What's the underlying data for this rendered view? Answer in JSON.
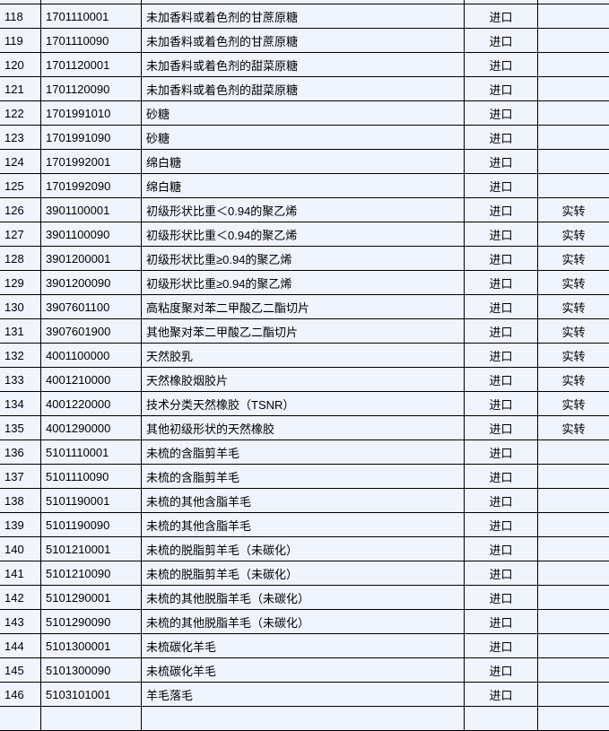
{
  "rows": [
    {
      "no": "",
      "code": "",
      "name": "",
      "type": "",
      "note": ""
    },
    {
      "no": "118",
      "code": "1701110001",
      "name": "未加香料或着色剂的甘蔗原糖",
      "type": "进口",
      "note": ""
    },
    {
      "no": "119",
      "code": "1701110090",
      "name": "未加香料或着色剂的甘蔗原糖",
      "type": "进口",
      "note": ""
    },
    {
      "no": "120",
      "code": "1701120001",
      "name": "未加香料或着色剂的甜菜原糖",
      "type": "进口",
      "note": ""
    },
    {
      "no": "121",
      "code": "1701120090",
      "name": "未加香料或着色剂的甜菜原糖",
      "type": "进口",
      "note": ""
    },
    {
      "no": "122",
      "code": "1701991010",
      "name": "砂糖",
      "type": "进口",
      "note": ""
    },
    {
      "no": "123",
      "code": "1701991090",
      "name": "砂糖",
      "type": "进口",
      "note": ""
    },
    {
      "no": "124",
      "code": "1701992001",
      "name": "绵白糖",
      "type": "进口",
      "note": ""
    },
    {
      "no": "125",
      "code": "1701992090",
      "name": "绵白糖",
      "type": "进口",
      "note": ""
    },
    {
      "no": "126",
      "code": "3901100001",
      "name": "初级形状比重＜0.94的聚乙烯",
      "type": "进口",
      "note": "实转"
    },
    {
      "no": "127",
      "code": "3901100090",
      "name": "初级形状比重＜0.94的聚乙烯",
      "type": "进口",
      "note": "实转"
    },
    {
      "no": "128",
      "code": "3901200001",
      "name": "初级形状比重≥0.94的聚乙烯",
      "type": "进口",
      "note": "实转"
    },
    {
      "no": "129",
      "code": "3901200090",
      "name": "初级形状比重≥0.94的聚乙烯",
      "type": "进口",
      "note": "实转"
    },
    {
      "no": "130",
      "code": "3907601100",
      "name": "高粘度聚对苯二甲酸乙二酯切片",
      "type": "进口",
      "note": "实转"
    },
    {
      "no": "131",
      "code": "3907601900",
      "name": "其他聚对苯二甲酸乙二酯切片",
      "type": "进口",
      "note": "实转"
    },
    {
      "no": "132",
      "code": "4001100000",
      "name": "天然胶乳",
      "type": "进口",
      "note": "实转"
    },
    {
      "no": "133",
      "code": "4001210000",
      "name": "天然橡胶烟胶片",
      "type": "进口",
      "note": "实转"
    },
    {
      "no": "134",
      "code": "4001220000",
      "name": "技术分类天然橡胶（TSNR）",
      "type": "进口",
      "note": "实转"
    },
    {
      "no": "135",
      "code": "4001290000",
      "name": "其他初级形状的天然橡胶",
      "type": "进口",
      "note": "实转"
    },
    {
      "no": "136",
      "code": "5101110001",
      "name": "未梳的含脂剪羊毛",
      "type": "进口",
      "note": ""
    },
    {
      "no": "137",
      "code": "5101110090",
      "name": "未梳的含脂剪羊毛",
      "type": "进口",
      "note": ""
    },
    {
      "no": "138",
      "code": "5101190001",
      "name": "未梳的其他含脂羊毛",
      "type": "进口",
      "note": ""
    },
    {
      "no": "139",
      "code": "5101190090",
      "name": "未梳的其他含脂羊毛",
      "type": "进口",
      "note": ""
    },
    {
      "no": "140",
      "code": "5101210001",
      "name": "未梳的脱脂剪羊毛（未碳化）",
      "type": "进口",
      "note": ""
    },
    {
      "no": "141",
      "code": "5101210090",
      "name": "未梳的脱脂剪羊毛（未碳化）",
      "type": "进口",
      "note": ""
    },
    {
      "no": "142",
      "code": "5101290001",
      "name": "未梳的其他脱脂羊毛（未碳化）",
      "type": "进口",
      "note": ""
    },
    {
      "no": "143",
      "code": "5101290090",
      "name": "未梳的其他脱脂羊毛（未碳化）",
      "type": "进口",
      "note": ""
    },
    {
      "no": "144",
      "code": "5101300001",
      "name": "未梳碳化羊毛",
      "type": "进口",
      "note": ""
    },
    {
      "no": "145",
      "code": "5101300090",
      "name": "未梳碳化羊毛",
      "type": "进口",
      "note": ""
    },
    {
      "no": "146",
      "code": "5103101001",
      "name": "羊毛落毛",
      "type": "进口",
      "note": ""
    },
    {
      "no": "",
      "code": "",
      "name": "",
      "type": "",
      "note": ""
    }
  ]
}
